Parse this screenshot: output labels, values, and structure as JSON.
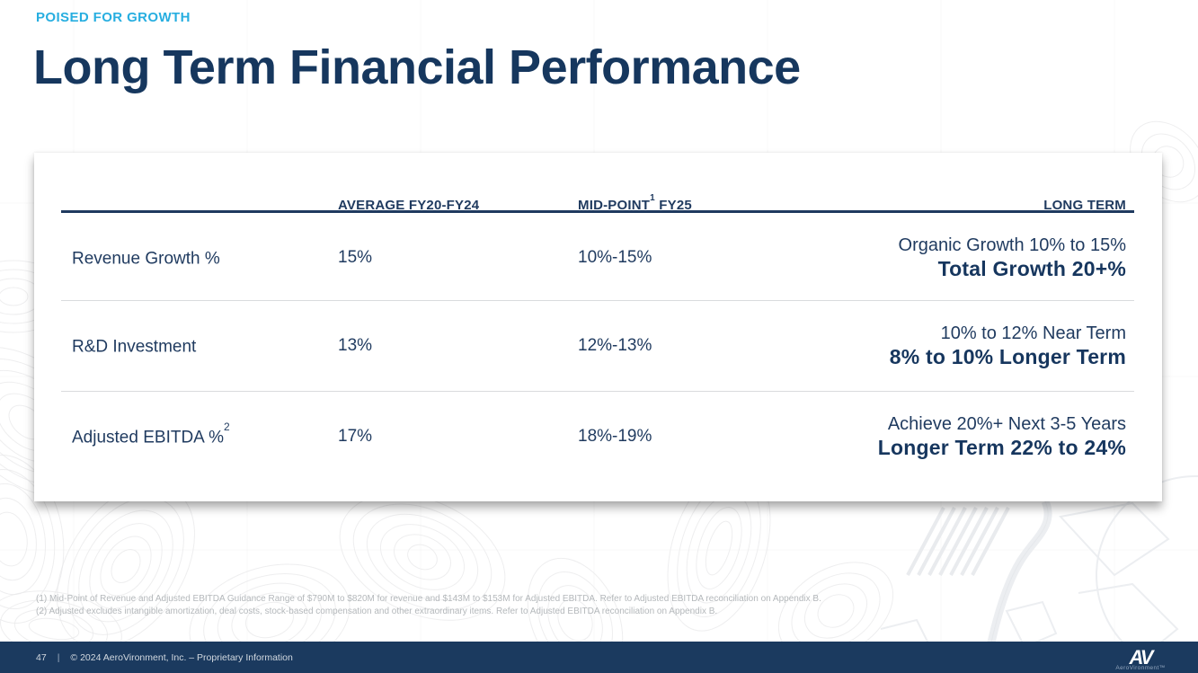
{
  "slide": {
    "eyebrow": "POISED FOR GROWTH",
    "title": "Long Term Financial Performance"
  },
  "table": {
    "col_headers": {
      "average": "AVERAGE FY20-FY24",
      "midpoint_pre": "MID-POINT",
      "midpoint_sup": "1",
      "midpoint_post": " FY25",
      "long_term": "LONG TERM"
    },
    "rows": [
      {
        "label": "Revenue Growth %",
        "label_sup": "",
        "average": "15%",
        "midpoint": "10%-15%",
        "long_term_line1": "Organic Growth 10% to 15%",
        "long_term_line2": "Total Growth 20+%"
      },
      {
        "label": "R&D Investment",
        "label_sup": "",
        "average": "13%",
        "midpoint": "12%-13%",
        "long_term_line1": "10% to 12% Near Term",
        "long_term_line2": "8% to 10% Longer Term"
      },
      {
        "label": "Adjusted EBITDA %",
        "label_sup": "2",
        "average": "17%",
        "midpoint": "18%-19%",
        "long_term_line1": "Achieve 20%+ Next 3-5 Years",
        "long_term_line2": "Longer Term 22% to 24%"
      }
    ]
  },
  "footnotes": {
    "line1": "(1) Mid-Point of Revenue and Adjusted EBITDA Guidance Range of $790M to $820M for revenue and $143M to $153M for Adjusted EBITDA. Refer to Adjusted EBITDA reconciliation on Appendix B.",
    "line2": "(2) Adjusted excludes intangible amortization, deal costs, stock-based compensation and other extraordinary items. Refer to Adjusted EBITDA reconciliation on Appendix B."
  },
  "footer": {
    "page_number": "47",
    "separator": "|",
    "copyright": "© 2024 AeroVironment, Inc. – Proprietary Information",
    "logo": "AV",
    "logo_subtext": "AeroVironment™"
  },
  "colors": {
    "accent_cyan": "#27AEE0",
    "navy_text": "#16375E",
    "table_rule_navy": "#1F3A5F",
    "divider_gray": "#D9DBDD",
    "footnote_gray": "#B4B8BB",
    "footer_navy": "#1B3A5F"
  }
}
